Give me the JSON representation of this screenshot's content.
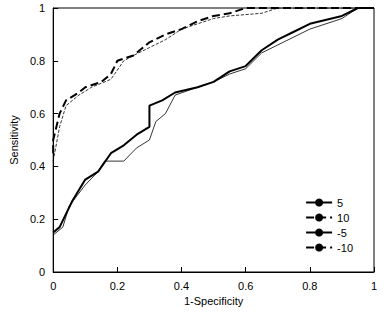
{
  "chart_data": {
    "type": "line",
    "x_label": "1-Specificity",
    "y_label": "Sensitivity",
    "xlim": [
      0,
      1
    ],
    "ylim": [
      0,
      1
    ],
    "xticks": [
      0,
      0.2,
      0.4,
      0.6,
      0.8,
      1
    ],
    "yticks": [
      0,
      0.2,
      0.4,
      0.6,
      0.8,
      1
    ],
    "grid": false,
    "legend": "lower right",
    "series": [
      {
        "name": "5",
        "color": "#000000",
        "line_style": "solid",
        "x": [
          0,
          0.03,
          0.05,
          0.1,
          0.14,
          0.16,
          0.22,
          0.26,
          0.3,
          0.32,
          0.35,
          0.38,
          0.45,
          0.5,
          0.55,
          0.6,
          0.65,
          0.7,
          0.8,
          0.9,
          0.95,
          1
        ],
        "values": [
          0.14,
          0.17,
          0.25,
          0.33,
          0.38,
          0.42,
          0.42,
          0.47,
          0.5,
          0.57,
          0.6,
          0.67,
          0.7,
          0.72,
          0.75,
          0.77,
          0.83,
          0.86,
          0.92,
          0.96,
          1,
          1
        ]
      },
      {
        "name": "10",
        "color": "#000000",
        "line_style": "dashed",
        "x": [
          0,
          0.02,
          0.04,
          0.08,
          0.12,
          0.18,
          0.22,
          0.25,
          0.3,
          0.35,
          0.4,
          0.45,
          0.5,
          0.55,
          0.65,
          0.7,
          1
        ],
        "values": [
          0.42,
          0.55,
          0.63,
          0.67,
          0.7,
          0.73,
          0.8,
          0.82,
          0.85,
          0.88,
          0.92,
          0.94,
          0.96,
          0.97,
          0.98,
          1,
          1
        ]
      },
      {
        "name": "-5",
        "color": "#000000",
        "line_style": "solid",
        "x": [
          0,
          0.02,
          0.04,
          0.06,
          0.1,
          0.14,
          0.18,
          0.22,
          0.26,
          0.3,
          0.3,
          0.34,
          0.38,
          0.45,
          0.5,
          0.55,
          0.6,
          0.65,
          0.7,
          0.75,
          0.8,
          0.9,
          0.95,
          1
        ],
        "values": [
          0.15,
          0.17,
          0.22,
          0.27,
          0.35,
          0.38,
          0.45,
          0.48,
          0.52,
          0.55,
          0.63,
          0.65,
          0.68,
          0.7,
          0.72,
          0.76,
          0.78,
          0.84,
          0.88,
          0.91,
          0.94,
          0.97,
          1,
          1
        ]
      },
      {
        "name": "-10",
        "color": "#000000",
        "line_style": "dashed",
        "x": [
          0,
          0,
          0.02,
          0.04,
          0.08,
          0.1,
          0.15,
          0.18,
          0.2,
          0.25,
          0.28,
          0.3,
          0.35,
          0.4,
          0.45,
          0.5,
          0.55,
          0.6,
          1
        ],
        "values": [
          0.45,
          0.5,
          0.6,
          0.65,
          0.68,
          0.7,
          0.72,
          0.75,
          0.8,
          0.82,
          0.85,
          0.87,
          0.9,
          0.92,
          0.95,
          0.97,
          0.98,
          1,
          1
        ]
      }
    ]
  }
}
